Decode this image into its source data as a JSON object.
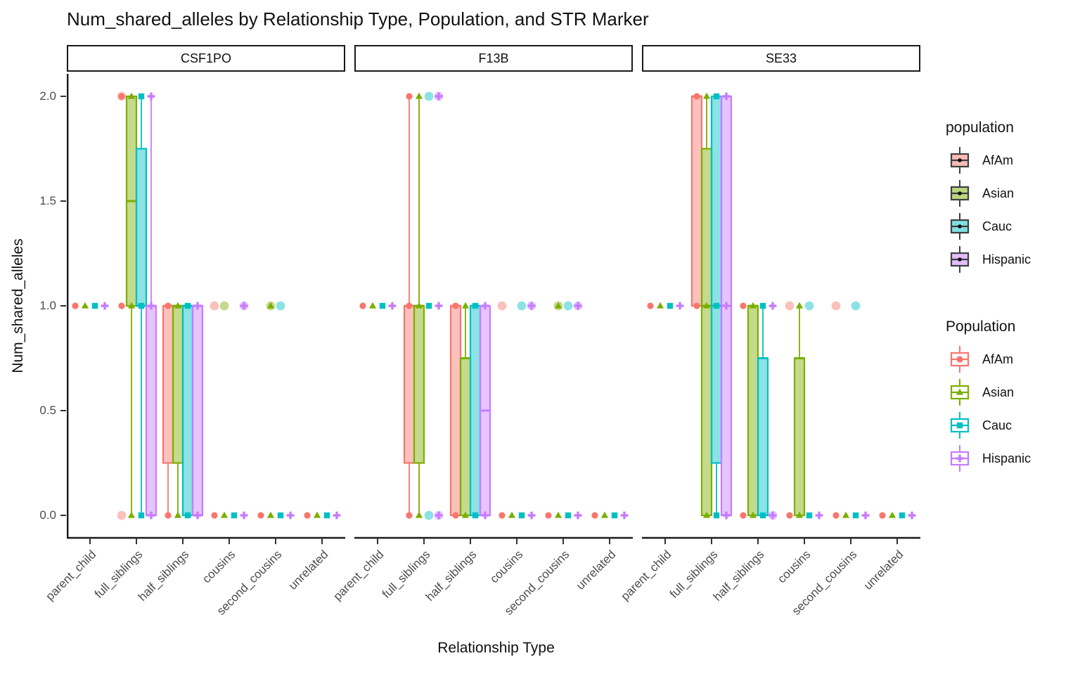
{
  "title": "Num_shared_alleles by Relationship Type, Population, and STR Marker",
  "axes": {
    "x_title": "Relationship Type",
    "y_title": "Num_shared_alleles",
    "y_ticks": [
      "0.0",
      "0.5",
      "1.0",
      "1.5",
      "2.0"
    ],
    "y_tick_values": [
      0,
      0.5,
      1,
      1.5,
      2
    ]
  },
  "legends": [
    {
      "title": "population",
      "style": "fill",
      "entries": [
        {
          "label": "AfAm"
        },
        {
          "label": "Asian"
        },
        {
          "label": "Cauc"
        },
        {
          "label": "Hispanic"
        }
      ]
    },
    {
      "title": "Population",
      "style": "outline",
      "entries": [
        {
          "label": "AfAm"
        },
        {
          "label": "Asian"
        },
        {
          "label": "Cauc"
        },
        {
          "label": "Hispanic"
        }
      ]
    }
  ],
  "chart_data": {
    "type": "grouped_boxplot_with_points",
    "title": "Num_shared_alleles by Relationship Type, Population, and STR Marker",
    "xlabel": "Relationship Type",
    "ylabel": "Num_shared_alleles",
    "ylim": [
      0,
      2
    ],
    "grid": false,
    "legend_position": "right",
    "facets": [
      "CSF1PO",
      "F13B",
      "SE33"
    ],
    "categories": [
      "parent_child",
      "full_siblings",
      "half_siblings",
      "cousins",
      "second_cousins",
      "unrelated"
    ],
    "populations": [
      {
        "name": "AfAm",
        "color": "#F8766D",
        "shape": "circle"
      },
      {
        "name": "Asian",
        "color": "#7CAE00",
        "shape": "triangle"
      },
      {
        "name": "Cauc",
        "color": "#00BFC4",
        "shape": "square"
      },
      {
        "name": "Hispanic",
        "color": "#C77CFF",
        "shape": "plus"
      }
    ],
    "cells": {
      "CSF1PO": {
        "parent_child": {
          "AfAm": {
            "points": [
              1
            ]
          },
          "Asian": {
            "points": [
              1
            ]
          },
          "Cauc": {
            "points": [
              1
            ]
          },
          "Hispanic": {
            "points": [
              1
            ]
          }
        },
        "full_siblings": {
          "AfAm": {
            "points": [
              1,
              2
            ],
            "outliers": [
              0,
              2
            ]
          },
          "Asian": {
            "box": [
              1,
              2
            ],
            "median": 1.5,
            "whiskers": [
              0,
              2
            ],
            "points": [
              0,
              1,
              2
            ]
          },
          "Cauc": {
            "box": [
              1,
              1.75
            ],
            "median": 1,
            "whiskers": [
              0,
              2
            ],
            "points": [
              0,
              1,
              2
            ]
          },
          "Hispanic": {
            "box": [
              0,
              1
            ],
            "median": 1,
            "whiskers": [
              0,
              2
            ],
            "points": [
              0,
              1,
              2
            ]
          }
        },
        "half_siblings": {
          "AfAm": {
            "box": [
              0.25,
              1
            ],
            "median": 1,
            "whiskers": [
              0,
              1
            ],
            "points": [
              0,
              1
            ]
          },
          "Asian": {
            "box": [
              0.25,
              1
            ],
            "median": 1,
            "whiskers": [
              0,
              1
            ],
            "points": [
              0,
              1
            ]
          },
          "Cauc": {
            "box": [
              0,
              1
            ],
            "median": 1,
            "whiskers": [
              0,
              1
            ],
            "points": [
              0,
              1
            ]
          },
          "Hispanic": {
            "box": [
              0,
              1
            ],
            "median": 1,
            "whiskers": [
              0,
              1
            ],
            "points": [
              0,
              1
            ]
          }
        },
        "cousins": {
          "AfAm": {
            "points": [
              0
            ],
            "outliers": [
              1
            ]
          },
          "Asian": {
            "points": [
              0
            ],
            "outliers": [
              1
            ]
          },
          "Cauc": {
            "points": [
              0
            ]
          },
          "Hispanic": {
            "points": [
              0,
              1
            ],
            "outliers": [
              1
            ]
          }
        },
        "second_cousins": {
          "AfAm": {
            "points": [
              0
            ]
          },
          "Asian": {
            "points": [
              0,
              1
            ],
            "outliers": [
              1
            ]
          },
          "Cauc": {
            "points": [
              0
            ],
            "outliers": [
              1
            ]
          },
          "Hispanic": {
            "points": [
              0
            ]
          }
        },
        "unrelated": {
          "AfAm": {
            "points": [
              0
            ]
          },
          "Asian": {
            "points": [
              0
            ]
          },
          "Cauc": {
            "points": [
              0
            ]
          },
          "Hispanic": {
            "points": [
              0
            ]
          }
        }
      },
      "F13B": {
        "parent_child": {
          "AfAm": {
            "points": [
              1
            ]
          },
          "Asian": {
            "points": [
              1
            ]
          },
          "Cauc": {
            "points": [
              1
            ]
          },
          "Hispanic": {
            "points": [
              1
            ]
          }
        },
        "full_siblings": {
          "AfAm": {
            "box": [
              0.25,
              1
            ],
            "median": 1,
            "whiskers": [
              0,
              2
            ],
            "points": [
              0,
              1,
              2
            ]
          },
          "Asian": {
            "box": [
              0.25,
              1
            ],
            "median": 1,
            "whiskers": [
              0,
              2
            ],
            "points": [
              0,
              1,
              2
            ]
          },
          "Cauc": {
            "points": [
              1
            ],
            "outliers": [
              0,
              2
            ]
          },
          "Hispanic": {
            "points": [
              0,
              1,
              2
            ],
            "outliers": [
              0,
              2
            ]
          }
        },
        "half_siblings": {
          "AfAm": {
            "box": [
              0,
              1
            ],
            "median": 1,
            "whiskers": [
              0,
              1
            ],
            "points": [
              0,
              1
            ]
          },
          "Asian": {
            "box": [
              0,
              0.75
            ],
            "median": 0.75,
            "whiskers": [
              0,
              1
            ],
            "points": [
              0,
              1
            ]
          },
          "Cauc": {
            "box": [
              0,
              1
            ],
            "median": 1,
            "whiskers": [
              0,
              1
            ],
            "points": [
              0,
              1
            ]
          },
          "Hispanic": {
            "box": [
              0,
              1
            ],
            "median": 0.5,
            "whiskers": [
              0,
              1
            ],
            "points": [
              0,
              1
            ]
          }
        },
        "cousins": {
          "AfAm": {
            "points": [
              0
            ],
            "outliers": [
              1
            ]
          },
          "Asian": {
            "points": [
              0
            ]
          },
          "Cauc": {
            "points": [
              0
            ],
            "outliers": [
              1
            ]
          },
          "Hispanic": {
            "points": [
              0,
              1
            ],
            "outliers": [
              1
            ]
          }
        },
        "second_cousins": {
          "AfAm": {
            "points": [
              0
            ]
          },
          "Asian": {
            "points": [
              0,
              1
            ],
            "outliers": [
              1
            ]
          },
          "Cauc": {
            "points": [
              0
            ],
            "outliers": [
              1
            ]
          },
          "Hispanic": {
            "points": [
              0,
              1
            ],
            "outliers": [
              1
            ]
          }
        },
        "unrelated": {
          "AfAm": {
            "points": [
              0
            ]
          },
          "Asian": {
            "points": [
              0
            ]
          },
          "Cauc": {
            "points": [
              0
            ]
          },
          "Hispanic": {
            "points": [
              0
            ]
          }
        }
      },
      "SE33": {
        "parent_child": {
          "AfAm": {
            "points": [
              1
            ]
          },
          "Asian": {
            "points": [
              1
            ]
          },
          "Cauc": {
            "points": [
              1
            ]
          },
          "Hispanic": {
            "points": [
              1
            ]
          }
        },
        "full_siblings": {
          "AfAm": {
            "box": [
              1,
              2
            ],
            "median": 2,
            "whiskers": [
              1,
              2
            ],
            "points": [
              1,
              2
            ]
          },
          "Asian": {
            "box": [
              0,
              1.75
            ],
            "median": 1,
            "whiskers": [
              0,
              2
            ],
            "points": [
              0,
              1,
              2
            ]
          },
          "Cauc": {
            "box": [
              0.25,
              2
            ],
            "median": 1,
            "whiskers": [
              0,
              2
            ],
            "points": [
              0,
              1,
              2
            ]
          },
          "Hispanic": {
            "box": [
              0,
              2
            ],
            "median": 1,
            "whiskers": [
              0,
              2
            ],
            "points": [
              0,
              1,
              2
            ]
          }
        },
        "half_siblings": {
          "AfAm": {
            "points": [
              0,
              1
            ]
          },
          "Asian": {
            "box": [
              0,
              1
            ],
            "median": 1,
            "whiskers": [
              0,
              1
            ],
            "points": [
              0,
              1
            ]
          },
          "Cauc": {
            "box": [
              0,
              0.75
            ],
            "median": 0.75,
            "whiskers": [
              0,
              1
            ],
            "points": [
              0,
              1
            ]
          },
          "Hispanic": {
            "points": [
              0,
              1
            ],
            "outliers": [
              0
            ]
          }
        },
        "cousins": {
          "AfAm": {
            "points": [
              0
            ],
            "outliers": [
              1
            ]
          },
          "Asian": {
            "box": [
              0,
              0.75
            ],
            "median": 0.75,
            "whiskers": [
              0,
              1
            ],
            "points": [
              0,
              1
            ]
          },
          "Cauc": {
            "points": [
              0
            ],
            "outliers": [
              1
            ]
          },
          "Hispanic": {
            "points": [
              0
            ]
          }
        },
        "second_cousins": {
          "AfAm": {
            "points": [
              0
            ],
            "outliers": [
              1
            ]
          },
          "Asian": {
            "points": [
              0
            ]
          },
          "Cauc": {
            "points": [
              0
            ],
            "outliers": [
              1
            ]
          },
          "Hispanic": {
            "points": [
              0
            ]
          }
        },
        "unrelated": {
          "AfAm": {
            "points": [
              0
            ]
          },
          "Asian": {
            "points": [
              0
            ]
          },
          "Cauc": {
            "points": [
              0
            ]
          },
          "Hispanic": {
            "points": [
              0
            ]
          }
        }
      }
    }
  }
}
